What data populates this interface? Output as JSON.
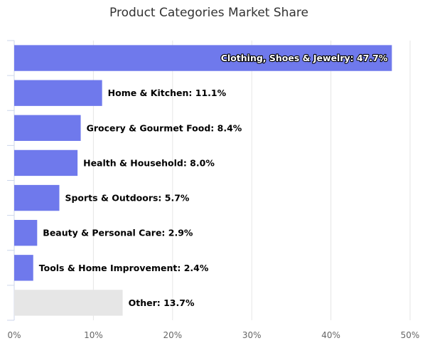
{
  "chart_data": {
    "type": "bar",
    "orientation": "horizontal",
    "title": "Product Categories Market Share",
    "categories": [
      "Clothing, Shoes & Jewelry",
      "Home & Kitchen",
      "Grocery & Gourmet Food",
      "Health & Household",
      "Sports & Outdoors",
      "Beauty & Personal Care",
      "Tools & Home Improvement",
      "Other"
    ],
    "values": [
      47.7,
      11.1,
      8.4,
      8.0,
      5.7,
      2.9,
      2.4,
      13.7
    ],
    "labels": [
      "Clothing, Shoes & Jewelry: 47.7%",
      "Home & Kitchen: 11.1%",
      "Grocery & Gourmet Food: 8.4%",
      "Health & Household: 8.0%",
      "Sports & Outdoors: 5.7%",
      "Beauty & Personal Care: 2.9%",
      "Tools & Home Improvement: 2.4%",
      "Other: 13.7%"
    ],
    "colors": [
      "#6f79ec",
      "#6f79ec",
      "#6f79ec",
      "#6f79ec",
      "#6f79ec",
      "#6f79ec",
      "#6f79ec",
      "#e6e6e6"
    ],
    "xlim": [
      0,
      50
    ],
    "xticks": [
      "0%",
      "10%",
      "20%",
      "30%",
      "40%",
      "50%"
    ],
    "grid": true
  }
}
